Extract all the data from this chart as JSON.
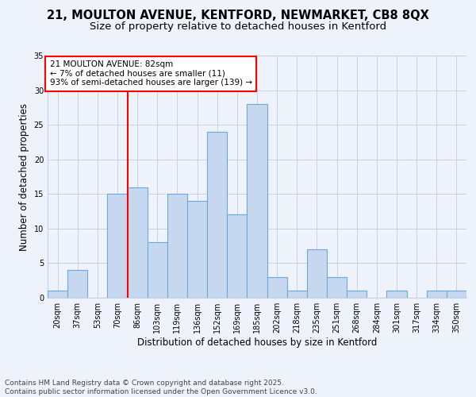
{
  "title": "21, MOULTON AVENUE, KENTFORD, NEWMARKET, CB8 8QX",
  "subtitle": "Size of property relative to detached houses in Kentford",
  "xlabel": "Distribution of detached houses by size in Kentford",
  "ylabel": "Number of detached properties",
  "footer_line1": "Contains HM Land Registry data © Crown copyright and database right 2025.",
  "footer_line2": "Contains public sector information licensed under the Open Government Licence v3.0.",
  "annotation_line1": "21 MOULTON AVENUE: 82sqm",
  "annotation_line2": "← 7% of detached houses are smaller (11)",
  "annotation_line3": "93% of semi-detached houses are larger (139) →",
  "bin_labels": [
    "20sqm",
    "37sqm",
    "53sqm",
    "70sqm",
    "86sqm",
    "103sqm",
    "119sqm",
    "136sqm",
    "152sqm",
    "169sqm",
    "185sqm",
    "202sqm",
    "218sqm",
    "235sqm",
    "251sqm",
    "268sqm",
    "284sqm",
    "301sqm",
    "317sqm",
    "334sqm",
    "350sqm"
  ],
  "bar_values": [
    1,
    4,
    0,
    15,
    16,
    8,
    15,
    14,
    24,
    12,
    28,
    3,
    1,
    7,
    3,
    1,
    0,
    1,
    0,
    1,
    1
  ],
  "bar_color": "#c5d8f0",
  "bar_edge_color": "#6ea8d8",
  "vline_x": 3.5,
  "vline_color": "red",
  "ylim": [
    0,
    35
  ],
  "yticks": [
    0,
    5,
    10,
    15,
    20,
    25,
    30,
    35
  ],
  "background_color": "#eef2fb",
  "grid_color": "#c8cfe8",
  "annotation_box_color": "white",
  "annotation_box_edge": "red",
  "title_fontsize": 10.5,
  "subtitle_fontsize": 9.5,
  "axis_label_fontsize": 8.5,
  "tick_fontsize": 7,
  "annotation_fontsize": 7.5,
  "footer_fontsize": 6.5
}
